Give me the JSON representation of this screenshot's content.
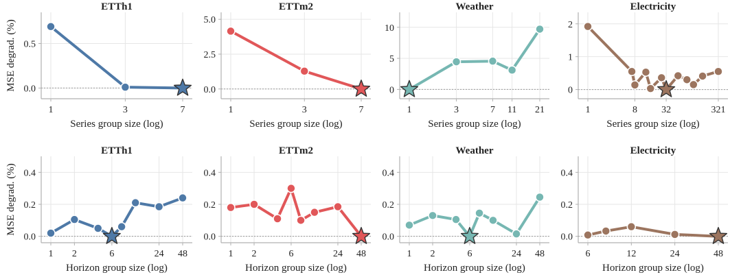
{
  "figure": {
    "y_axis_label": "MSE degrad. (%)"
  },
  "chart_data": [
    {
      "type": "line",
      "title": "ETTh1",
      "xlabel": "Series group size (log)",
      "ylabel": "MSE degrad. (%)",
      "color": "#4e79a7",
      "xscale": "log",
      "xlim": [
        1,
        7
      ],
      "ylim": [
        -0.12,
        0.85
      ],
      "xticks": [
        1,
        3,
        7
      ],
      "xtick_labels": [
        "1",
        "3",
        "7"
      ],
      "yticks": [
        0.0,
        0.5
      ],
      "ytick_labels": [
        "0.0",
        "0.5"
      ],
      "x": [
        1,
        3,
        7
      ],
      "y": [
        0.69,
        0.01,
        0.0
      ],
      "star_x": 7,
      "star_y": 0.0,
      "grid": true
    },
    {
      "type": "line",
      "title": "ETTm2",
      "xlabel": "Series group size (log)",
      "ylabel": "",
      "color": "#e15759",
      "xscale": "log",
      "xlim": [
        1,
        7
      ],
      "ylim": [
        -0.7,
        5.5
      ],
      "xticks": [
        1,
        3,
        7
      ],
      "xtick_labels": [
        "1",
        "3",
        "7"
      ],
      "yticks": [
        0.0,
        2.5,
        5.0
      ],
      "ytick_labels": [
        "0.0",
        "2.5",
        "5.0"
      ],
      "x": [
        1,
        3,
        7
      ],
      "y": [
        4.15,
        1.28,
        0.0
      ],
      "star_x": 7,
      "star_y": 0.0,
      "grid": true
    },
    {
      "type": "line",
      "title": "Weather",
      "xlabel": "Series group size (log)",
      "ylabel": "",
      "color": "#76b7b2",
      "xscale": "log",
      "xlim": [
        1,
        21
      ],
      "ylim": [
        -1.5,
        12.4
      ],
      "xticks": [
        1,
        3,
        7,
        11,
        21
      ],
      "xtick_labels": [
        "1",
        "3",
        "7",
        "11",
        "21"
      ],
      "yticks": [
        0,
        5,
        10
      ],
      "ytick_labels": [
        "0",
        "5",
        "10"
      ],
      "x": [
        1,
        3,
        7,
        11,
        21
      ],
      "y": [
        0.0,
        4.45,
        4.55,
        3.1,
        9.7
      ],
      "star_x": 1,
      "star_y": 0.0,
      "grid": true
    },
    {
      "type": "line",
      "title": "Electricity",
      "xlabel": "Series group size (log)",
      "ylabel": "",
      "color": "#9c755f",
      "xscale": "log",
      "xlim": [
        1,
        321
      ],
      "ylim": [
        -0.28,
        2.35
      ],
      "xticks": [
        1,
        8,
        32,
        321
      ],
      "xtick_labels": [
        "1",
        "8",
        "32",
        "321"
      ],
      "yticks": [
        0,
        1,
        2
      ],
      "ytick_labels": [
        "0",
        "1",
        "2"
      ],
      "x": [
        1,
        7,
        8,
        13,
        16,
        26,
        32,
        54,
        80,
        107,
        160,
        321
      ],
      "y": [
        1.92,
        0.55,
        0.14,
        0.53,
        0.03,
        0.36,
        0.0,
        0.42,
        0.3,
        0.15,
        0.41,
        0.55
      ],
      "star_x": 32,
      "star_y": 0.0,
      "grid": true
    },
    {
      "type": "line",
      "title": "ETTh1",
      "xlabel": "Horizon group size (log)",
      "ylabel": "MSE degrad. (%)",
      "color": "#4e79a7",
      "xscale": "log",
      "xlim": [
        1,
        48
      ],
      "ylim": [
        -0.04,
        0.5
      ],
      "xticks": [
        1,
        2,
        6,
        24,
        48
      ],
      "xtick_labels": [
        "1",
        "2",
        "6",
        "24",
        "48"
      ],
      "yticks": [
        0.0,
        0.2,
        0.4
      ],
      "ytick_labels": [
        "0.0",
        "0.2",
        "0.4"
      ],
      "x": [
        1,
        2,
        4,
        6,
        8,
        12,
        24,
        48
      ],
      "y": [
        0.02,
        0.105,
        0.05,
        0.0,
        0.06,
        0.21,
        0.185,
        0.24
      ],
      "star_x": 6,
      "star_y": 0.0,
      "grid": true
    },
    {
      "type": "line",
      "title": "ETTm2",
      "xlabel": "Horizon group size (log)",
      "ylabel": "",
      "color": "#e15759",
      "xscale": "log",
      "xlim": [
        1,
        48
      ],
      "ylim": [
        -0.04,
        0.5
      ],
      "xticks": [
        1,
        2,
        6,
        24,
        48
      ],
      "xtick_labels": [
        "1",
        "2",
        "6",
        "24",
        "48"
      ],
      "yticks": [
        0.0,
        0.2,
        0.4
      ],
      "ytick_labels": [
        "0.0",
        "0.2",
        "0.4"
      ],
      "x": [
        1,
        2,
        4,
        6,
        8,
        12,
        24,
        48
      ],
      "y": [
        0.18,
        0.2,
        0.11,
        0.3,
        0.1,
        0.15,
        0.185,
        0.0
      ],
      "star_x": 48,
      "star_y": 0.0,
      "grid": true
    },
    {
      "type": "line",
      "title": "Weather",
      "xlabel": "Horizon group size (log)",
      "ylabel": "",
      "color": "#76b7b2",
      "xscale": "log",
      "xlim": [
        1,
        48
      ],
      "ylim": [
        -0.04,
        0.5
      ],
      "xticks": [
        1,
        2,
        6,
        24,
        48
      ],
      "xtick_labels": [
        "1",
        "2",
        "6",
        "24",
        "48"
      ],
      "yticks": [
        0.0,
        0.2,
        0.4
      ],
      "ytick_labels": [
        "0.0",
        "0.2",
        "0.4"
      ],
      "x": [
        1,
        2,
        4,
        6,
        8,
        12,
        24,
        48
      ],
      "y": [
        0.07,
        0.13,
        0.105,
        0.0,
        0.145,
        0.1,
        0.015,
        0.245
      ],
      "star_x": 6,
      "star_y": 0.0,
      "grid": true
    },
    {
      "type": "line",
      "title": "Electricity",
      "xlabel": "Horizon group size (log)",
      "ylabel": "",
      "color": "#9c755f",
      "xscale": "log",
      "xlim": [
        6,
        48
      ],
      "ylim": [
        -0.04,
        0.5
      ],
      "xticks": [
        6,
        12,
        24,
        48
      ],
      "xtick_labels": [
        "6",
        "12",
        "24",
        "48"
      ],
      "yticks": [
        0.0,
        0.2,
        0.4
      ],
      "ytick_labels": [
        "0.0",
        "0.2",
        "0.4"
      ],
      "x": [
        6,
        8,
        12,
        24,
        48
      ],
      "y": [
        0.008,
        0.033,
        0.06,
        0.012,
        0.0
      ],
      "star_x": 48,
      "star_y": 0.0,
      "grid": true
    }
  ]
}
